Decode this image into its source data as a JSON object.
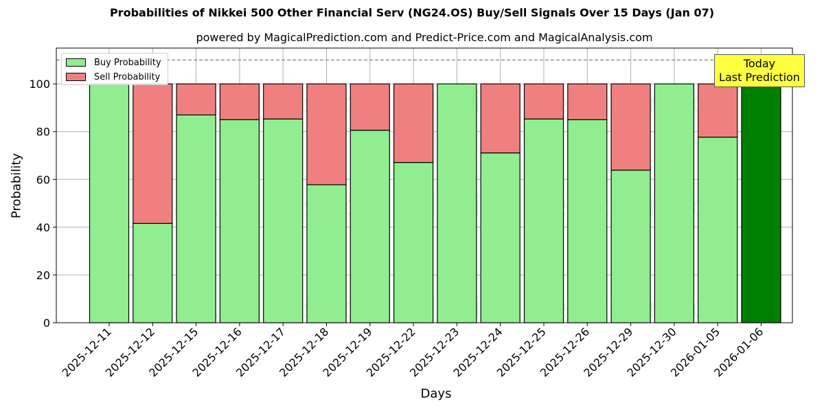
{
  "header": {
    "title": "Probabilities of Nikkei 500 Other Financial Serv (NG24.OS) Buy/Sell Signals Over 15 Days (Jan 07)",
    "subtitle": "powered by MagicalPrediction.com and Predict-Price.com and MagicalAnalysis.com"
  },
  "legend": {
    "buy_label": "Buy Probability",
    "sell_label": "Sell Probability"
  },
  "annotation": {
    "line1": "Today",
    "line2": "Last Prediction"
  },
  "watermarks": [
    "MagicalAnalysis.com",
    "MagicalPrediction.com"
  ],
  "colors": {
    "buy": "#90ee90",
    "sell": "#f08080",
    "today_buy": "#008000",
    "annotation_bg": "#ffff40",
    "grid": "#b0b0b0",
    "reference_line": "#808080"
  },
  "chart_data": {
    "type": "bar",
    "stacked": true,
    "title": "Probabilities of Nikkei 500 Other Financial Serv (NG24.OS) Buy/Sell Signals Over 15 Days (Jan 07)",
    "subtitle": "powered by MagicalPrediction.com and Predict-Price.com and MagicalAnalysis.com",
    "xlabel": "Days",
    "ylabel": "Probability",
    "ylim": [
      0,
      115
    ],
    "yticks": [
      0,
      20,
      40,
      60,
      80,
      100
    ],
    "grid": true,
    "legend_position": "upper left",
    "reference_line": {
      "y": 110,
      "style": "dashed"
    },
    "categories": [
      "2025-12-11",
      "2025-12-12",
      "2025-12-15",
      "2025-12-16",
      "2025-12-17",
      "2025-12-18",
      "2025-12-19",
      "2025-12-22",
      "2025-12-23",
      "2025-12-24",
      "2025-12-25",
      "2025-12-26",
      "2025-12-29",
      "2025-12-30",
      "2026-01-05",
      "2026-01-06"
    ],
    "series": [
      {
        "name": "Buy Probability",
        "values": [
          100,
          41.6,
          87.0,
          85.0,
          85.3,
          57.8,
          80.6,
          67.1,
          100,
          71.1,
          85.3,
          85.0,
          63.9,
          100,
          77.7,
          100
        ]
      },
      {
        "name": "Sell Probability",
        "values": [
          0,
          58.4,
          13.0,
          15.0,
          14.7,
          42.2,
          19.4,
          32.9,
          0,
          28.9,
          14.7,
          15.0,
          36.1,
          0,
          22.3,
          0
        ]
      }
    ],
    "highlight": {
      "category": "2026-01-06",
      "label": "Today\nLast Prediction"
    }
  }
}
